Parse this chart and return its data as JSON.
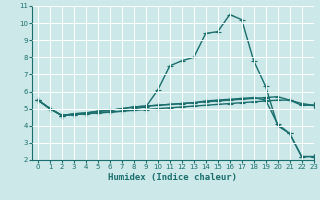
{
  "title": "",
  "xlabel": "Humidex (Indice chaleur)",
  "background_color": "#cce8e8",
  "grid_color": "#ffffff",
  "line_color": "#1a6e6e",
  "xlim": [
    -0.5,
    23
  ],
  "ylim": [
    2,
    11
  ],
  "xticks": [
    0,
    1,
    2,
    3,
    4,
    5,
    6,
    7,
    8,
    9,
    10,
    11,
    12,
    13,
    14,
    15,
    16,
    17,
    18,
    19,
    20,
    21,
    22,
    23
  ],
  "yticks": [
    2,
    3,
    4,
    5,
    6,
    7,
    8,
    9,
    10,
    11
  ],
  "line1_x": [
    0,
    1,
    2,
    3,
    4,
    5,
    6,
    7,
    8,
    9,
    10,
    11,
    12,
    13,
    14,
    15,
    16,
    17,
    18,
    19,
    20,
    21,
    22,
    23
  ],
  "line1_y": [
    5.5,
    5.0,
    4.6,
    4.7,
    4.75,
    4.85,
    4.9,
    5.0,
    5.1,
    5.15,
    5.2,
    5.25,
    5.3,
    5.35,
    5.4,
    5.45,
    5.5,
    5.55,
    5.6,
    5.65,
    5.7,
    5.5,
    5.3,
    5.2
  ],
  "line2_x": [
    0,
    1,
    2,
    3,
    4,
    5,
    6,
    7,
    8,
    9,
    10,
    11,
    12,
    13,
    14,
    15,
    16,
    17,
    18,
    19,
    20,
    21,
    22,
    23
  ],
  "line2_y": [
    5.5,
    5.0,
    4.6,
    4.7,
    4.75,
    4.85,
    4.9,
    5.0,
    5.1,
    5.15,
    5.2,
    5.25,
    5.3,
    5.35,
    5.45,
    5.5,
    5.55,
    5.6,
    5.65,
    5.5,
    4.1,
    3.55,
    2.2,
    2.2
  ],
  "line3_x": [
    0,
    1,
    2,
    3,
    4,
    5,
    6,
    7,
    8,
    9,
    10,
    11,
    12,
    13,
    14,
    15,
    16,
    17,
    18,
    19,
    20,
    21,
    22,
    23
  ],
  "line3_y": [
    5.5,
    5.0,
    4.6,
    4.65,
    4.7,
    4.75,
    4.8,
    4.85,
    4.9,
    4.95,
    5.0,
    5.05,
    5.1,
    5.15,
    5.2,
    5.25,
    5.3,
    5.35,
    5.4,
    5.45,
    5.5,
    5.5,
    5.2,
    5.2
  ],
  "line4_x": [
    0,
    1,
    2,
    3,
    4,
    5,
    6,
    7,
    8,
    9,
    10,
    11,
    12,
    13,
    14,
    15,
    16,
    17,
    18,
    19,
    20,
    21,
    22,
    23
  ],
  "line4_y": [
    5.5,
    5.0,
    4.6,
    4.65,
    4.7,
    4.75,
    4.8,
    4.85,
    5.0,
    5.1,
    6.1,
    7.5,
    7.8,
    8.0,
    9.4,
    9.5,
    10.5,
    10.2,
    7.8,
    6.3,
    4.0,
    3.55,
    2.2,
    2.2
  ],
  "marker": "+",
  "markersize": 4,
  "linewidth": 1.0
}
